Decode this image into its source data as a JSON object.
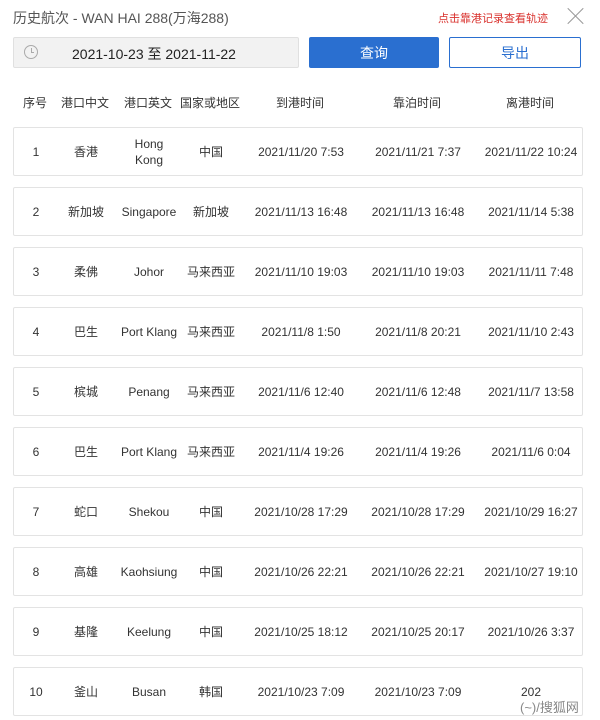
{
  "header": {
    "title": "历史航次 - WAN HAI 288(万海288)",
    "hint": "点击靠港记录查看轨迹"
  },
  "toolbar": {
    "date_range": "2021-10-23 至 2021-11-22",
    "query_label": "查询",
    "export_label": "导出"
  },
  "columns": [
    "序号",
    "港口中文",
    "港口英文",
    "国家或地区",
    "到港时间",
    "靠泊时间",
    "离港时间"
  ],
  "rows": [
    [
      "1",
      "香港",
      "Hong Kong",
      "中国",
      "2021/11/20 7:53",
      "2021/11/21 7:37",
      "2021/11/22 10:24"
    ],
    [
      "2",
      "新加坡",
      "Singapore",
      "新加坡",
      "2021/11/13 16:48",
      "2021/11/13 16:48",
      "2021/11/14 5:38"
    ],
    [
      "3",
      "柔佛",
      "Johor",
      "马来西亚",
      "2021/11/10 19:03",
      "2021/11/10 19:03",
      "2021/11/11 7:48"
    ],
    [
      "4",
      "巴生",
      "Port Klang",
      "马来西亚",
      "2021/11/8 1:50",
      "2021/11/8 20:21",
      "2021/11/10 2:43"
    ],
    [
      "5",
      "槟城",
      "Penang",
      "马来西亚",
      "2021/11/6 12:40",
      "2021/11/6 12:48",
      "2021/11/7 13:58"
    ],
    [
      "6",
      "巴生",
      "Port Klang",
      "马来西亚",
      "2021/11/4 19:26",
      "2021/11/4 19:26",
      "2021/11/6 0:04"
    ],
    [
      "7",
      "蛇口",
      "Shekou",
      "中国",
      "2021/10/28 17:29",
      "2021/10/28 17:29",
      "2021/10/29 16:27"
    ],
    [
      "8",
      "高雄",
      "Kaohsiung",
      "中国",
      "2021/10/26 22:21",
      "2021/10/26 22:21",
      "2021/10/27 19:10"
    ],
    [
      "9",
      "基隆",
      "Keelung",
      "中国",
      "2021/10/25 18:12",
      "2021/10/25 20:17",
      "2021/10/26 3:37"
    ],
    [
      "10",
      "釜山",
      "Busan",
      "韩国",
      "2021/10/23 7:09",
      "2021/10/23 7:09",
      "202"
    ]
  ],
  "watermark": "(~)/搜狐网",
  "colors": {
    "primary": "#2a6fd0",
    "hint": "#d9302c"
  }
}
